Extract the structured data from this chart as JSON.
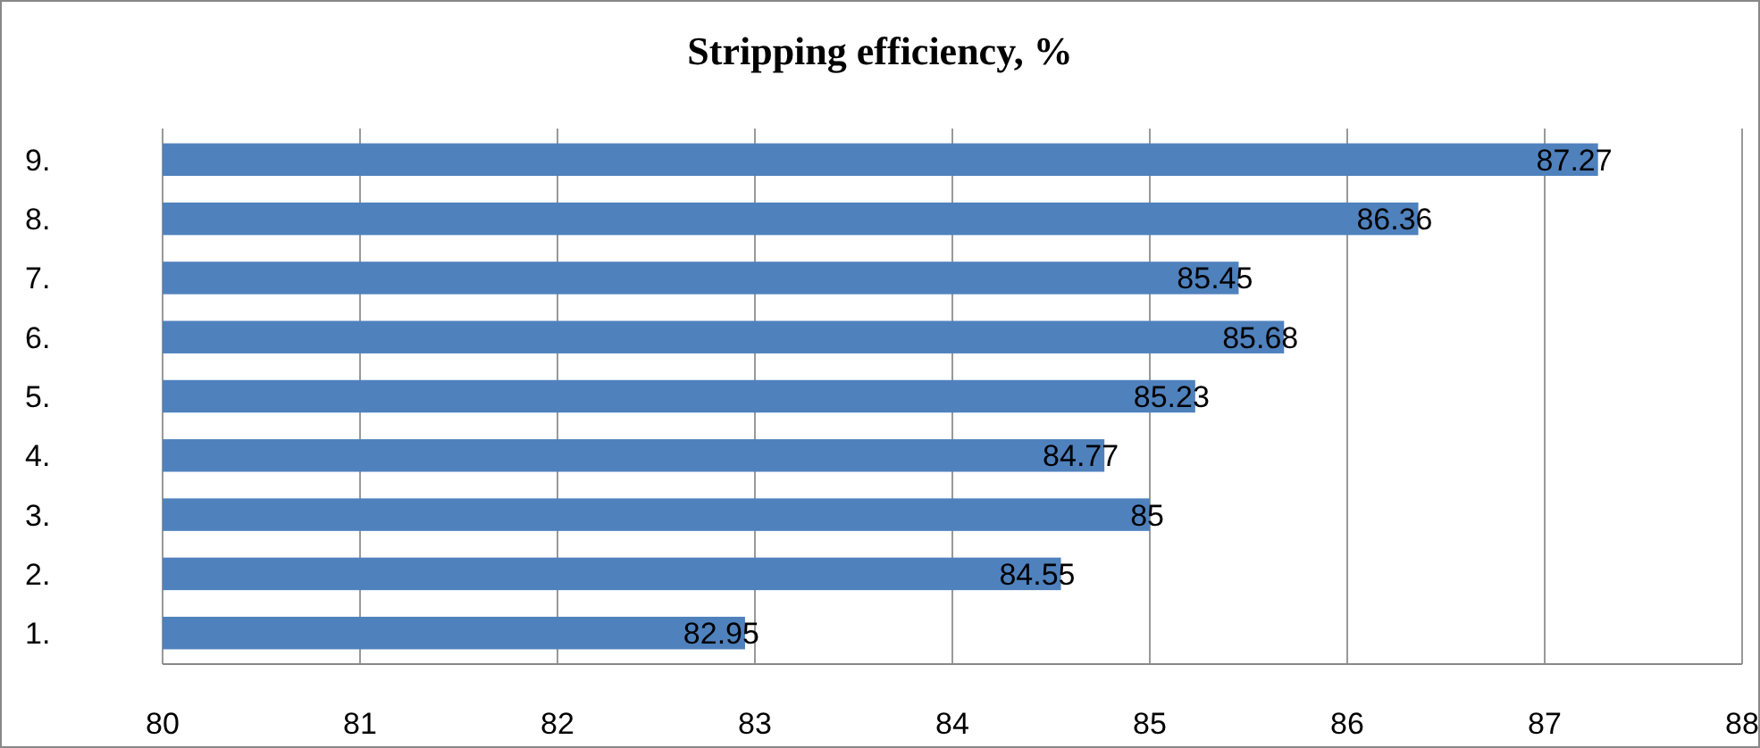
{
  "chart_data": {
    "type": "bar",
    "orientation": "horizontal",
    "title": "Stripping efficiency, %",
    "categories": [
      "9.",
      "8.",
      "7.",
      "6.",
      "5.",
      "4.",
      "3.",
      "2.",
      "1."
    ],
    "values": [
      87.27,
      86.36,
      85.45,
      85.68,
      85.23,
      84.77,
      85,
      84.55,
      82.95
    ],
    "color": "#4f81bd",
    "xlim": [
      80,
      88
    ],
    "xticks": [
      80,
      81,
      82,
      83,
      84,
      85,
      86,
      87,
      88
    ],
    "grid": "x",
    "data_labels": true
  }
}
